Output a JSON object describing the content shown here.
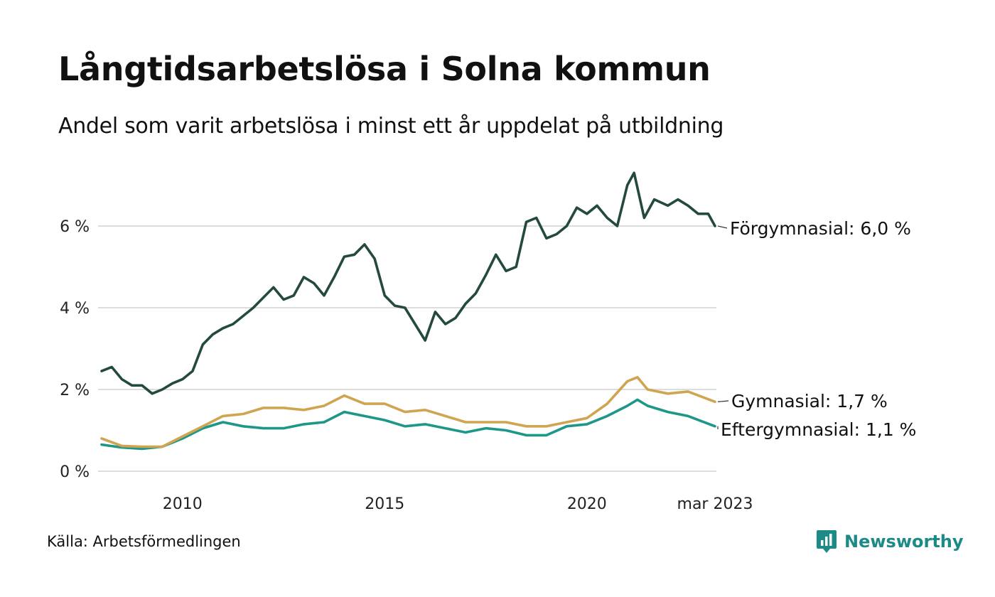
{
  "header": {
    "title": "Långtidsarbetslösa i Solna kommun",
    "subtitle": "Andel som varit arbetslösa i minst ett år uppdelat på utbildning"
  },
  "footer": {
    "source": "Källa: Arbetsförmedlingen",
    "brand": "Newsworthy"
  },
  "colors": {
    "forgymnasial": "#24493f",
    "gymnasial": "#cfa552",
    "eftergymnasial": "#1e9688",
    "grid": "#dddddd",
    "brand": "#1c8a86"
  },
  "chart_data": {
    "type": "line",
    "title": "Långtidsarbetslösa i Solna kommun",
    "subtitle": "Andel som varit arbetslösa i minst ett år uppdelat på utbildning",
    "x_range": [
      "2008-01",
      "2023-03"
    ],
    "x_ticks": [
      {
        "date": "2010-01",
        "label": "2010"
      },
      {
        "date": "2015-01",
        "label": "2015"
      },
      {
        "date": "2020-01",
        "label": "2020"
      },
      {
        "date": "2023-03",
        "label": "mar 2023"
      }
    ],
    "ylim": [
      0,
      7.5
    ],
    "y_ticks": [
      {
        "value": 0,
        "label": "0 %"
      },
      {
        "value": 2,
        "label": "2 %"
      },
      {
        "value": 4,
        "label": "4 %"
      },
      {
        "value": 6,
        "label": "6 %"
      }
    ],
    "grid": true,
    "legend": "end-of-line labels",
    "series": [
      {
        "name": "Förgymnasial",
        "end_label": "Förgymnasial: 6,0 %",
        "color": "#24493f",
        "points": [
          [
            "2008-01",
            2.45
          ],
          [
            "2008-04",
            2.55
          ],
          [
            "2008-07",
            2.25
          ],
          [
            "2008-10",
            2.1
          ],
          [
            "2009-01",
            2.1
          ],
          [
            "2009-04",
            1.9
          ],
          [
            "2009-07",
            2.0
          ],
          [
            "2009-10",
            2.15
          ],
          [
            "2010-01",
            2.25
          ],
          [
            "2010-04",
            2.45
          ],
          [
            "2010-07",
            3.1
          ],
          [
            "2010-10",
            3.35
          ],
          [
            "2011-01",
            3.5
          ],
          [
            "2011-04",
            3.6
          ],
          [
            "2011-07",
            3.8
          ],
          [
            "2011-10",
            4.0
          ],
          [
            "2012-01",
            4.25
          ],
          [
            "2012-04",
            4.5
          ],
          [
            "2012-07",
            4.2
          ],
          [
            "2012-10",
            4.3
          ],
          [
            "2013-01",
            4.75
          ],
          [
            "2013-04",
            4.6
          ],
          [
            "2013-07",
            4.3
          ],
          [
            "2013-10",
            4.75
          ],
          [
            "2014-01",
            5.25
          ],
          [
            "2014-04",
            5.3
          ],
          [
            "2014-07",
            5.55
          ],
          [
            "2014-10",
            5.2
          ],
          [
            "2015-01",
            4.3
          ],
          [
            "2015-04",
            4.05
          ],
          [
            "2015-07",
            4.0
          ],
          [
            "2015-10",
            3.6
          ],
          [
            "2016-01",
            3.2
          ],
          [
            "2016-04",
            3.9
          ],
          [
            "2016-07",
            3.6
          ],
          [
            "2016-10",
            3.75
          ],
          [
            "2017-01",
            4.1
          ],
          [
            "2017-04",
            4.35
          ],
          [
            "2017-07",
            4.8
          ],
          [
            "2017-10",
            5.3
          ],
          [
            "2018-01",
            4.9
          ],
          [
            "2018-04",
            5.0
          ],
          [
            "2018-07",
            6.1
          ],
          [
            "2018-10",
            6.2
          ],
          [
            "2019-01",
            5.7
          ],
          [
            "2019-04",
            5.8
          ],
          [
            "2019-07",
            6.0
          ],
          [
            "2019-10",
            6.45
          ],
          [
            "2020-01",
            6.3
          ],
          [
            "2020-04",
            6.5
          ],
          [
            "2020-07",
            6.2
          ],
          [
            "2020-10",
            6.0
          ],
          [
            "2021-01",
            7.0
          ],
          [
            "2021-03",
            7.3
          ],
          [
            "2021-06",
            6.2
          ],
          [
            "2021-09",
            6.65
          ],
          [
            "2022-01",
            6.5
          ],
          [
            "2022-04",
            6.65
          ],
          [
            "2022-07",
            6.5
          ],
          [
            "2022-10",
            6.3
          ],
          [
            "2023-01",
            6.3
          ],
          [
            "2023-03",
            6.0
          ]
        ]
      },
      {
        "name": "Gymnasial",
        "end_label": "Gymnasial: 1,7 %",
        "color": "#cfa552",
        "points": [
          [
            "2008-01",
            0.8
          ],
          [
            "2008-07",
            0.62
          ],
          [
            "2009-01",
            0.6
          ],
          [
            "2009-07",
            0.6
          ],
          [
            "2010-01",
            0.85
          ],
          [
            "2010-07",
            1.1
          ],
          [
            "2011-01",
            1.35
          ],
          [
            "2011-07",
            1.4
          ],
          [
            "2012-01",
            1.55
          ],
          [
            "2012-07",
            1.55
          ],
          [
            "2013-01",
            1.5
          ],
          [
            "2013-07",
            1.6
          ],
          [
            "2014-01",
            1.85
          ],
          [
            "2014-07",
            1.65
          ],
          [
            "2015-01",
            1.65
          ],
          [
            "2015-07",
            1.45
          ],
          [
            "2016-01",
            1.5
          ],
          [
            "2016-07",
            1.35
          ],
          [
            "2017-01",
            1.2
          ],
          [
            "2017-07",
            1.2
          ],
          [
            "2018-01",
            1.2
          ],
          [
            "2018-07",
            1.1
          ],
          [
            "2019-01",
            1.1
          ],
          [
            "2019-07",
            1.2
          ],
          [
            "2020-01",
            1.3
          ],
          [
            "2020-07",
            1.65
          ],
          [
            "2021-01",
            2.2
          ],
          [
            "2021-04",
            2.3
          ],
          [
            "2021-07",
            2.0
          ],
          [
            "2022-01",
            1.9
          ],
          [
            "2022-07",
            1.95
          ],
          [
            "2023-03",
            1.7
          ]
        ]
      },
      {
        "name": "Eftergymnasial",
        "end_label": "Eftergymnasial: 1,1 %",
        "color": "#1e9688",
        "points": [
          [
            "2008-01",
            0.65
          ],
          [
            "2008-07",
            0.58
          ],
          [
            "2009-01",
            0.55
          ],
          [
            "2009-07",
            0.6
          ],
          [
            "2010-01",
            0.8
          ],
          [
            "2010-07",
            1.05
          ],
          [
            "2011-01",
            1.2
          ],
          [
            "2011-07",
            1.1
          ],
          [
            "2012-01",
            1.05
          ],
          [
            "2012-07",
            1.05
          ],
          [
            "2013-01",
            1.15
          ],
          [
            "2013-07",
            1.2
          ],
          [
            "2014-01",
            1.45
          ],
          [
            "2014-07",
            1.35
          ],
          [
            "2015-01",
            1.25
          ],
          [
            "2015-07",
            1.1
          ],
          [
            "2016-01",
            1.15
          ],
          [
            "2016-07",
            1.05
          ],
          [
            "2017-01",
            0.95
          ],
          [
            "2017-07",
            1.05
          ],
          [
            "2018-01",
            1.0
          ],
          [
            "2018-07",
            0.88
          ],
          [
            "2019-01",
            0.88
          ],
          [
            "2019-07",
            1.1
          ],
          [
            "2020-01",
            1.15
          ],
          [
            "2020-07",
            1.35
          ],
          [
            "2021-01",
            1.6
          ],
          [
            "2021-04",
            1.75
          ],
          [
            "2021-07",
            1.6
          ],
          [
            "2022-01",
            1.45
          ],
          [
            "2022-07",
            1.35
          ],
          [
            "2023-03",
            1.1
          ]
        ]
      }
    ]
  }
}
